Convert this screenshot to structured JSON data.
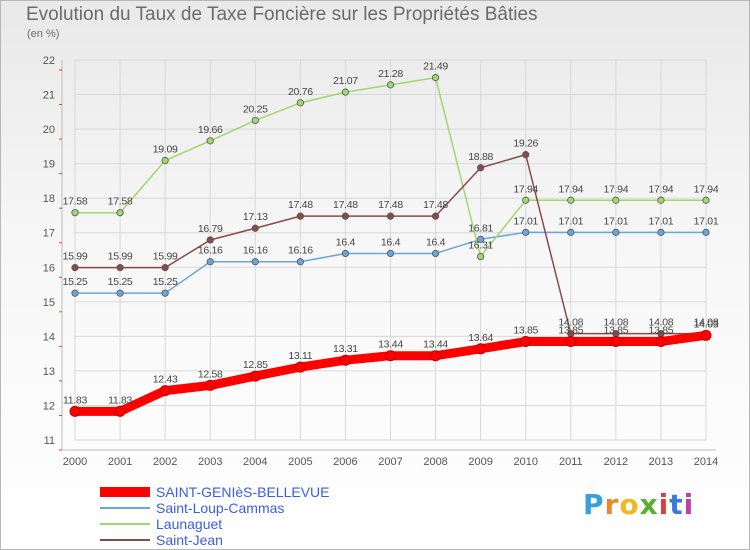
{
  "title": "Evolution du Taux de Taxe Foncière sur les Propriétés Bâties",
  "subtitle": "(en %)",
  "logo": "Proxiti",
  "chart_data": {
    "type": "line",
    "title": "Evolution du Taux de Taxe Foncière sur les Propriétés Bâties",
    "ylabel": "(en %)",
    "xlabel": "",
    "x": [
      2000,
      2001,
      2002,
      2003,
      2004,
      2005,
      2006,
      2007,
      2008,
      2009,
      2010,
      2011,
      2012,
      2013,
      2014
    ],
    "ylim": [
      11,
      22
    ],
    "yticks": [
      11,
      12,
      13,
      14,
      15,
      16,
      17,
      18,
      19,
      20,
      21,
      22
    ],
    "grid": true,
    "legend": "bottom-left",
    "series": [
      {
        "name": "SAINT-GENIèS-BELLEVUE",
        "color": "#ff0000",
        "width": 9,
        "values": [
          11.83,
          11.83,
          12.43,
          12.58,
          12.85,
          13.11,
          13.31,
          13.44,
          13.44,
          13.64,
          13.85,
          13.85,
          13.85,
          13.85,
          14.03
        ],
        "labels": [
          "11.83",
          "11.83",
          "12.43",
          "12.58",
          "12.85",
          "13.11",
          "13.31",
          "13.44",
          "13.44",
          "13.64",
          "13.85",
          "13.85",
          "13.85",
          "13.85",
          "14.03"
        ]
      },
      {
        "name": "Saint-Loup-Cammas",
        "color": "#6aa6d6",
        "width": 1.5,
        "values": [
          15.25,
          15.25,
          15.25,
          16.16,
          16.16,
          16.16,
          16.4,
          16.4,
          16.4,
          16.81,
          17.01,
          17.01,
          17.01,
          17.01,
          17.01
        ],
        "labels": [
          "15.25",
          "15.25",
          "15.25",
          "16.16",
          "16.16",
          "16.16",
          "16.4",
          "16.4",
          "16.4",
          "16.81",
          "17.01",
          "17.01",
          "17.01",
          "17.01",
          "17.01"
        ]
      },
      {
        "name": "Launaguet",
        "color": "#9ed86e",
        "width": 1.5,
        "values": [
          17.58,
          17.58,
          19.09,
          19.66,
          20.25,
          20.76,
          21.07,
          21.28,
          21.49,
          16.31,
          17.94,
          17.94,
          17.94,
          17.94,
          17.94
        ],
        "labels": [
          "17.58",
          "17.58",
          "19.09",
          "19.66",
          "20.25",
          "20.76",
          "21.07",
          "21.28",
          "21.49",
          "16.31",
          "17.94",
          "17.94",
          "17.94",
          "17.94",
          "17.94"
        ]
      },
      {
        "name": "Saint-Jean",
        "color": "#8a4a4a",
        "width": 1.5,
        "values": [
          15.99,
          15.99,
          15.99,
          16.79,
          17.13,
          17.48,
          17.48,
          17.48,
          17.48,
          18.88,
          19.26,
          14.08,
          14.08,
          14.08,
          14.08
        ],
        "labels": [
          "15.99",
          "15.99",
          "15.99",
          "16.79",
          "17.13",
          "17.48",
          "17.48",
          "17.48",
          "17.48",
          "18.88",
          "19.26",
          "14.08",
          "14.08",
          "14.08",
          "14.08"
        ]
      }
    ]
  }
}
